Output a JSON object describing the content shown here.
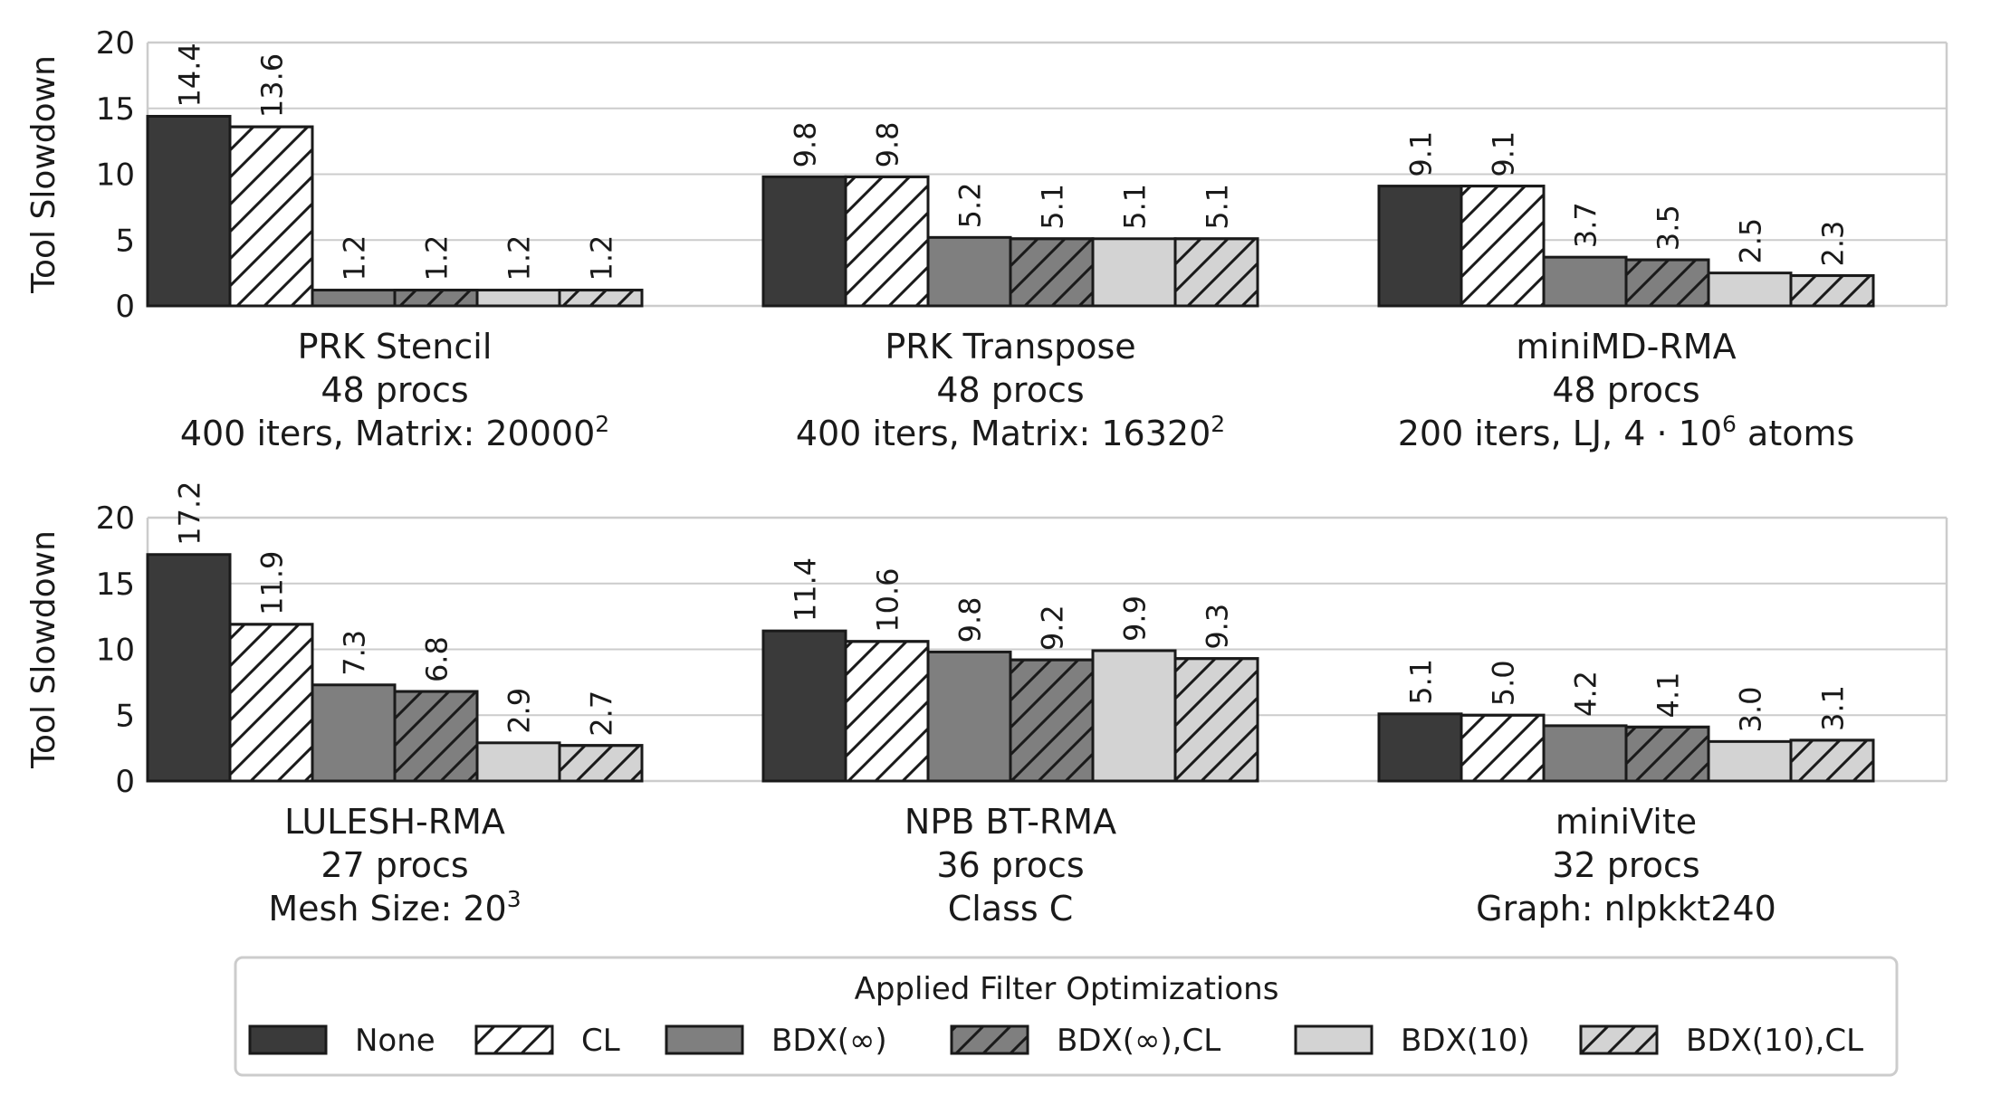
{
  "legend": {
    "title": "Applied Filter Optimizations",
    "placement": "bottom-center"
  },
  "colors": {
    "none": "#3a3a3a",
    "cl": "#ffffff",
    "bdx_inf": "#7f7f7f",
    "bdx_inf_cl": "#7f7f7f",
    "bdx10": "#d3d3d3",
    "bdx10_cl": "#d3d3d3",
    "grid": "#cccccc",
    "edge": "#1a1a1a"
  },
  "chart_data": [
    {
      "type": "bar",
      "title_lines": [
        "PRK Stencil",
        "48 procs"
      ],
      "subtitle": {
        "text": "400 iters, Matrix: 20000",
        "sup": "2",
        "after": ""
      },
      "ylabel": "Tool Slowdown",
      "ylim": [
        0,
        20
      ],
      "yticks": [
        "0",
        "5",
        "10",
        "15",
        "20"
      ],
      "grid": true,
      "series": [
        {
          "name": "None",
          "values": [
            14.4
          ],
          "label": "14.4",
          "hatch": false,
          "color": "#3a3a3a"
        },
        {
          "name": "CL",
          "values": [
            13.6
          ],
          "label": "13.6",
          "hatch": true,
          "color": "#ffffff"
        },
        {
          "name": "BDX(∞)",
          "values": [
            1.2
          ],
          "label": "1.2",
          "hatch": false,
          "color": "#7f7f7f"
        },
        {
          "name": "BDX(∞),CL",
          "values": [
            1.2
          ],
          "label": "1.2",
          "hatch": true,
          "color": "#7f7f7f"
        },
        {
          "name": "BDX(10)",
          "values": [
            1.2
          ],
          "label": "1.2",
          "hatch": false,
          "color": "#d3d3d3"
        },
        {
          "name": "BDX(10),CL",
          "values": [
            1.2
          ],
          "label": "1.2",
          "hatch": true,
          "color": "#d3d3d3"
        }
      ]
    },
    {
      "type": "bar",
      "title_lines": [
        "PRK Transpose",
        "48 procs"
      ],
      "subtitle": {
        "text": "400 iters, Matrix: 16320",
        "sup": "2",
        "after": ""
      },
      "ylim": [
        0,
        20
      ],
      "grid": true,
      "series": [
        {
          "name": "None",
          "values": [
            9.8
          ],
          "label": "9.8",
          "hatch": false,
          "color": "#3a3a3a"
        },
        {
          "name": "CL",
          "values": [
            9.8
          ],
          "label": "9.8",
          "hatch": true,
          "color": "#ffffff"
        },
        {
          "name": "BDX(∞)",
          "values": [
            5.2
          ],
          "label": "5.2",
          "hatch": false,
          "color": "#7f7f7f"
        },
        {
          "name": "BDX(∞),CL",
          "values": [
            5.1
          ],
          "label": "5.1",
          "hatch": true,
          "color": "#7f7f7f"
        },
        {
          "name": "BDX(10)",
          "values": [
            5.1
          ],
          "label": "5.1",
          "hatch": false,
          "color": "#d3d3d3"
        },
        {
          "name": "BDX(10),CL",
          "values": [
            5.1
          ],
          "label": "5.1",
          "hatch": true,
          "color": "#d3d3d3"
        }
      ]
    },
    {
      "type": "bar",
      "title_lines": [
        "miniMD-RMA",
        "48 procs"
      ],
      "subtitle": {
        "text": "200 iters, LJ, 4 · 10",
        "sup": "6",
        "after": " atoms"
      },
      "ylim": [
        0,
        20
      ],
      "grid": true,
      "series": [
        {
          "name": "None",
          "values": [
            9.1
          ],
          "label": "9.1",
          "hatch": false,
          "color": "#3a3a3a"
        },
        {
          "name": "CL",
          "values": [
            9.1
          ],
          "label": "9.1",
          "hatch": true,
          "color": "#ffffff"
        },
        {
          "name": "BDX(∞)",
          "values": [
            3.7
          ],
          "label": "3.7",
          "hatch": false,
          "color": "#7f7f7f"
        },
        {
          "name": "BDX(∞),CL",
          "values": [
            3.5
          ],
          "label": "3.5",
          "hatch": true,
          "color": "#7f7f7f"
        },
        {
          "name": "BDX(10)",
          "values": [
            2.5
          ],
          "label": "2.5",
          "hatch": false,
          "color": "#d3d3d3"
        },
        {
          "name": "BDX(10),CL",
          "values": [
            2.3
          ],
          "label": "2.3",
          "hatch": true,
          "color": "#d3d3d3"
        }
      ]
    },
    {
      "type": "bar",
      "title_lines": [
        "LULESH-RMA",
        "27 procs"
      ],
      "subtitle": {
        "text": "Mesh Size: 20",
        "sup": "3",
        "after": ""
      },
      "ylabel": "Tool Slowdown",
      "ylim": [
        0,
        20
      ],
      "yticks": [
        "0",
        "5",
        "10",
        "15",
        "20"
      ],
      "grid": true,
      "series": [
        {
          "name": "None",
          "values": [
            17.2
          ],
          "label": "17.2",
          "hatch": false,
          "color": "#3a3a3a"
        },
        {
          "name": "CL",
          "values": [
            11.9
          ],
          "label": "11.9",
          "hatch": true,
          "color": "#ffffff"
        },
        {
          "name": "BDX(∞)",
          "values": [
            7.3
          ],
          "label": "7.3",
          "hatch": false,
          "color": "#7f7f7f"
        },
        {
          "name": "BDX(∞),CL",
          "values": [
            6.8
          ],
          "label": "6.8",
          "hatch": true,
          "color": "#7f7f7f"
        },
        {
          "name": "BDX(10)",
          "values": [
            2.9
          ],
          "label": "2.9",
          "hatch": false,
          "color": "#d3d3d3"
        },
        {
          "name": "BDX(10),CL",
          "values": [
            2.7
          ],
          "label": "2.7",
          "hatch": true,
          "color": "#d3d3d3"
        }
      ]
    },
    {
      "type": "bar",
      "title_lines": [
        "NPB BT-RMA",
        "36 procs"
      ],
      "subtitle": {
        "text": "Class C",
        "sup": "",
        "after": ""
      },
      "ylim": [
        0,
        20
      ],
      "grid": true,
      "series": [
        {
          "name": "None",
          "values": [
            11.4
          ],
          "label": "11.4",
          "hatch": false,
          "color": "#3a3a3a"
        },
        {
          "name": "CL",
          "values": [
            10.6
          ],
          "label": "10.6",
          "hatch": true,
          "color": "#ffffff"
        },
        {
          "name": "BDX(∞)",
          "values": [
            9.8
          ],
          "label": "9.8",
          "hatch": false,
          "color": "#7f7f7f"
        },
        {
          "name": "BDX(∞),CL",
          "values": [
            9.2
          ],
          "label": "9.2",
          "hatch": true,
          "color": "#7f7f7f"
        },
        {
          "name": "BDX(10)",
          "values": [
            9.9
          ],
          "label": "9.9",
          "hatch": false,
          "color": "#d3d3d3"
        },
        {
          "name": "BDX(10),CL",
          "values": [
            9.3
          ],
          "label": "9.3",
          "hatch": true,
          "color": "#d3d3d3"
        }
      ]
    },
    {
      "type": "bar",
      "title_lines": [
        "miniVite",
        "32 procs"
      ],
      "subtitle": {
        "text": "Graph: nlpkkt240",
        "sup": "",
        "after": ""
      },
      "ylim": [
        0,
        20
      ],
      "grid": true,
      "series": [
        {
          "name": "None",
          "values": [
            5.1
          ],
          "label": "5.1",
          "hatch": false,
          "color": "#3a3a3a"
        },
        {
          "name": "CL",
          "values": [
            5.0
          ],
          "label": "5.0",
          "hatch": true,
          "color": "#ffffff"
        },
        {
          "name": "BDX(∞)",
          "values": [
            4.2
          ],
          "label": "4.2",
          "hatch": false,
          "color": "#7f7f7f"
        },
        {
          "name": "BDX(∞),CL",
          "values": [
            4.1
          ],
          "label": "4.1",
          "hatch": true,
          "color": "#7f7f7f"
        },
        {
          "name": "BDX(10)",
          "values": [
            3.0
          ],
          "label": "3.0",
          "hatch": false,
          "color": "#d3d3d3"
        },
        {
          "name": "BDX(10),CL",
          "values": [
            3.1
          ],
          "label": "3.1",
          "hatch": true,
          "color": "#d3d3d3"
        }
      ]
    }
  ]
}
